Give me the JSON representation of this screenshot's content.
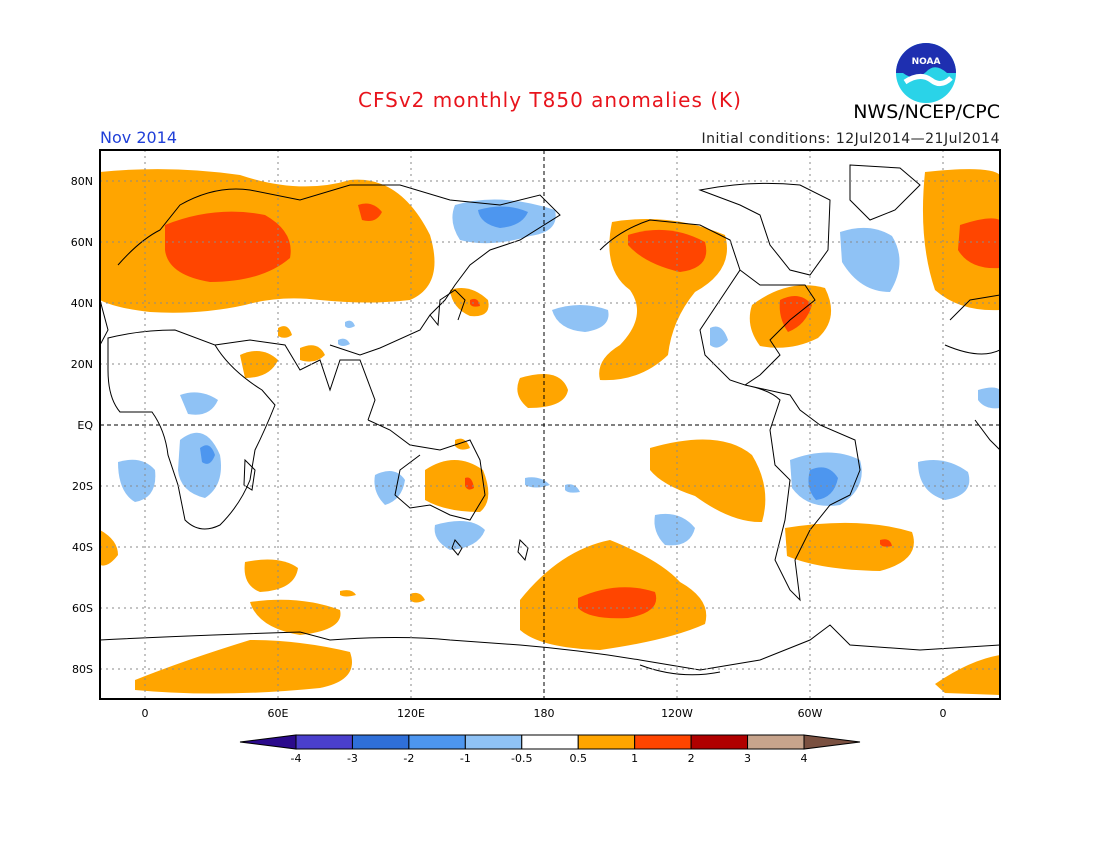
{
  "header": {
    "title": "CFSv2 monthly T850 anomalies (K)",
    "agency": "NWS/NCEP/CPC",
    "period": "Nov 2014",
    "initial_conditions": "Initial conditions: 12Jul2014—21Jul2014",
    "logo_text": "NOAA"
  },
  "axes": {
    "lat_labels": [
      "80N",
      "60N",
      "40N",
      "20N",
      "EQ",
      "20S",
      "40S",
      "60S",
      "80S"
    ],
    "lon_labels": [
      "0",
      "60E",
      "120E",
      "180",
      "120W",
      "60W",
      "0"
    ]
  },
  "colorbar": {
    "labels": [
      "-4",
      "-3",
      "-2",
      "-1",
      "-0.5",
      "0.5",
      "1",
      "2",
      "3",
      "4"
    ],
    "colors": [
      "#2b0a8c",
      "#4a3fcc",
      "#2f6fd8",
      "#4d96ef",
      "#8fc2f5",
      "#ffffff",
      "#ffa500",
      "#ff4500",
      "#b00000",
      "#c7a48c",
      "#7a5040"
    ]
  },
  "map_data": {
    "positive_anomalies_ge_0.5": [
      "Europe / W Russia",
      "N Siberia",
      "NE Pacific / W North America",
      "W Atlantic",
      "Central Pacific",
      "S Pacific",
      "Southern Ocean",
      "S Atlantic",
      "Antarctica"
    ],
    "strong_anomalies_ge_1": [
      "Scandinavia / W Russia",
      "Alaska / W Canada",
      "Newfoundland",
      "S Pacific",
      "S Atlantic"
    ],
    "negative_anomalies_le_-0.5": [
      "NE Siberia",
      "Labrador Sea",
      "Central Pacific",
      "Africa",
      "S Indian Ocean",
      "Brazil",
      "SE Pacific"
    ]
  }
}
